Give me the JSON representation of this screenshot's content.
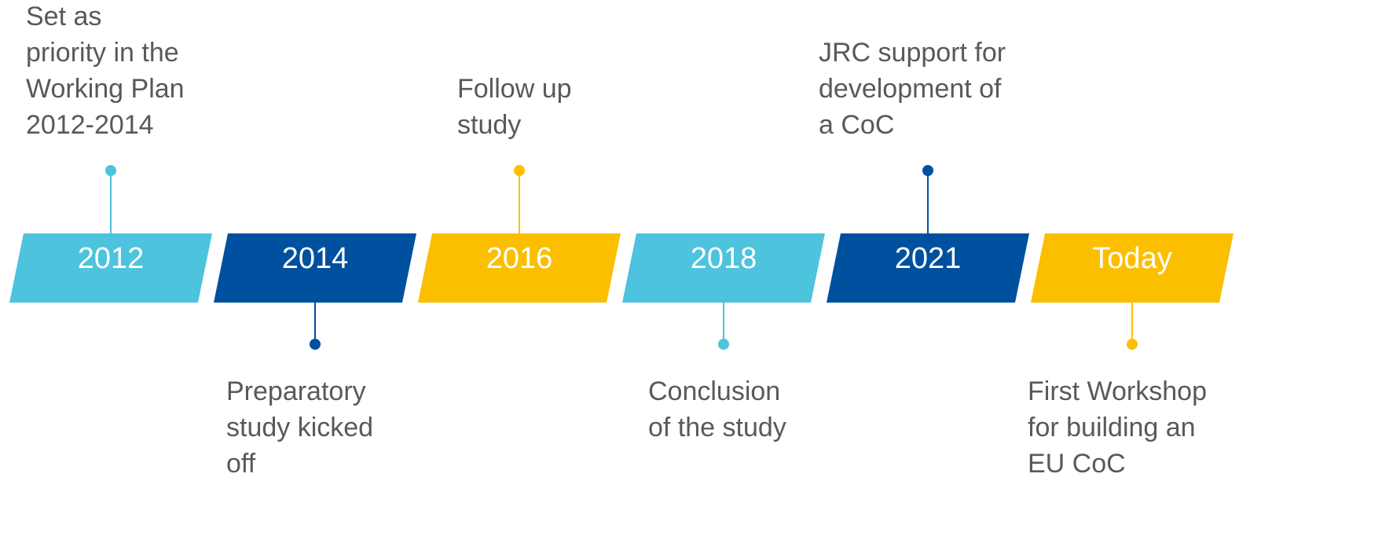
{
  "milestones": [
    {
      "year": "2012",
      "color": "#4dc3de",
      "position": "top",
      "description": [
        "Set as",
        "priority in the",
        "Working Plan",
        "2012-2014"
      ]
    },
    {
      "year": "2014",
      "color": "#0050a0",
      "position": "bottom",
      "description": [
        "Preparatory",
        "study kicked",
        "off"
      ]
    },
    {
      "year": "2016",
      "color": "#fbbf00",
      "position": "top",
      "description": [
        "Follow up",
        "study"
      ]
    },
    {
      "year": "2018",
      "color": "#4dc3de",
      "position": "bottom",
      "description": [
        "Conclusion",
        "of the study"
      ]
    },
    {
      "year": "2021",
      "color": "#0050a0",
      "position": "top",
      "description": [
        "JRC support for",
        "development of",
        "a CoC"
      ]
    },
    {
      "year": "Today",
      "color": "#fbbf00",
      "position": "bottom",
      "description": [
        "First Workshop",
        "for building an",
        "EU CoC"
      ]
    }
  ]
}
